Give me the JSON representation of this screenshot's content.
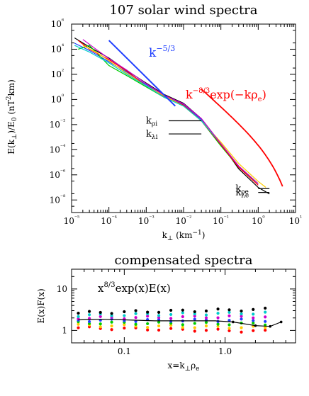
{
  "chart_data": [
    {
      "type": "line",
      "title": "107 solar wind spectra",
      "xlabel": "k⊥ (km⁻¹)",
      "ylabel": "E(k⊥)/E₀ (nT²km)",
      "xscale": "log",
      "yscale": "log",
      "xlim": [
        1e-05,
        10
      ],
      "ylim": [
        1e-09,
        1000000.0
      ],
      "x_tick_labels": [
        "10⁻⁵",
        "10⁻⁴",
        "10⁻³",
        "10⁻²",
        "10⁻¹",
        "10⁰",
        "10¹"
      ],
      "y_tick_labels": [
        "10⁻⁸",
        "10⁻⁶",
        "10⁻⁴",
        "10⁻²",
        "10⁰",
        "10²",
        "10⁴",
        "10⁶"
      ],
      "grid": false,
      "spectra_count": 107,
      "annotations": {
        "kolmogorov_label": "k",
        "kolmogorov_exp": "−5/3",
        "kolmogorov_color": "#1f3fff",
        "kolmogorov_line": {
          "x": [
            0.0001,
            0.006
          ],
          "y": [
            50000.0,
            0.3
          ]
        },
        "fit_label_k": "k",
        "fit_label_exp": "−8/3",
        "fit_label_rest": "exp(−kρ",
        "fit_label_sub": "e",
        "fit_label_close": ")",
        "fit_color": "#ff0000",
        "fit_curve": {
          "x_range": [
            0.03,
            4.5
          ],
          "amplitude": 0.0006,
          "slope": -2.6667,
          "rho_e": 1.0
        },
        "scale_markers": [
          {
            "label": "k",
            "sub": "ρi",
            "x": [
              0.004,
              0.03
            ],
            "y": 0.02
          },
          {
            "label": "k",
            "sub": "λi",
            "x": [
              0.004,
              0.03
            ],
            "y": 0.0018
          },
          {
            "label": "k",
            "sub": "ρe",
            "x": [
              1.0,
              2.0
            ],
            "y": 8e-08
          },
          {
            "label": "k",
            "sub": "λe",
            "x": [
              1.0,
              2.0
            ],
            "y": 4e-08
          }
        ]
      },
      "series": [
        {
          "color": "#000000",
          "x": [
            1.2e-05,
            3e-05,
            0.0001,
            0.0003,
            0.001,
            0.003,
            0.01,
            0.03,
            0.1,
            0.3,
            1.0,
            2.0
          ],
          "y": [
            80000.0,
            15000.0,
            2000,
            200,
            20,
            2.5,
            0.5,
            0.03,
            0.0003,
            3e-06,
            1e-07,
            3e-08
          ]
        },
        {
          "color": "#1f3fff",
          "x": [
            1.2e-05,
            3e-05,
            0.0001,
            0.0003,
            0.001,
            0.003,
            0.01,
            0.03,
            0.1,
            0.3,
            1.0
          ],
          "y": [
            30000.0,
            8000.0,
            1000,
            150,
            15,
            2,
            0.4,
            0.025,
            0.0003,
            5e-06,
            2e-07
          ]
        },
        {
          "color": "#00cc00",
          "x": [
            1.5e-05,
            3e-05,
            0.0001,
            0.0003,
            0.001,
            0.003,
            0.01,
            0.03,
            0.1,
            0.3,
            1.0
          ],
          "y": [
            10000.0,
            20000.0,
            500,
            80,
            10,
            1.5,
            0.3,
            0.02,
            0.0002,
            4e-06,
            2e-07
          ]
        },
        {
          "color": "#ff0000",
          "x": [
            1.5e-05,
            3e-05,
            0.0001,
            0.0003,
            0.001,
            0.003,
            0.01,
            0.03,
            0.1,
            0.3,
            1.0
          ],
          "y": [
            50000.0,
            10000.0,
            1500,
            180,
            12,
            1.8,
            0.35,
            0.02,
            0.00025,
            4e-06,
            1.5e-07
          ]
        },
        {
          "color": "#ffcc00",
          "x": [
            2e-05,
            5e-05,
            0.0001,
            0.0003,
            0.001,
            0.003,
            0.01,
            0.03,
            0.1,
            0.3,
            1.0,
            1.6
          ],
          "y": [
            20000.0,
            5000.0,
            1200,
            120,
            12,
            2,
            0.3,
            0.02,
            0.0004,
            8e-06,
            3e-07,
            1e-07
          ]
        },
        {
          "color": "#00cccc",
          "x": [
            1.2e-05,
            3e-05,
            0.0001,
            0.0003,
            0.001,
            0.003,
            0.01,
            0.03,
            0.1
          ],
          "y": [
            20000.0,
            6000.0,
            800,
            100,
            12,
            1.5,
            0.3,
            0.02,
            0.0003
          ]
        },
        {
          "color": "#cc00cc",
          "x": [
            2e-05,
            5e-05,
            0.0001,
            0.0003,
            0.001,
            0.003,
            0.01,
            0.03,
            0.1,
            0.3,
            1.0
          ],
          "y": [
            60000.0,
            8000.0,
            1800,
            220,
            18,
            2.2,
            0.45,
            0.03,
            0.0003,
            5e-06,
            2e-07
          ]
        }
      ]
    },
    {
      "type": "scatter",
      "title": "compensated spectra",
      "xlabel": "x=k⊥ρₑ",
      "ylabel": "E(x)F(x)",
      "xscale": "log",
      "yscale": "log",
      "xlim": [
        0.03,
        5
      ],
      "ylim": [
        0.5,
        30
      ],
      "x_tick_labels": [
        "0.1",
        "1.0"
      ],
      "y_tick_labels": [
        "1",
        "10"
      ],
      "grid": false,
      "annotation_base": "x",
      "annotation_exp": "8/3",
      "annotation_rest": "exp(x)E(x)",
      "point_colors": [
        "#ff0000",
        "#ffcc00",
        "#00cc00",
        "#1f3fff",
        "#cc00cc",
        "#00cccc",
        "#000000"
      ],
      "x_points": [
        0.035,
        0.045,
        0.058,
        0.075,
        0.1,
        0.13,
        0.17,
        0.22,
        0.29,
        0.38,
        0.5,
        0.65,
        0.85,
        1.1,
        1.45,
        1.9,
        2.5
      ],
      "mean_curve": {
        "x": [
          0.035,
          0.06,
          0.1,
          0.2,
          0.4,
          0.8,
          1.2,
          2.0,
          2.8,
          3.6
        ],
        "y": [
          1.8,
          1.85,
          1.8,
          1.7,
          1.7,
          1.7,
          1.6,
          1.3,
          1.25,
          1.6
        ]
      }
    }
  ]
}
